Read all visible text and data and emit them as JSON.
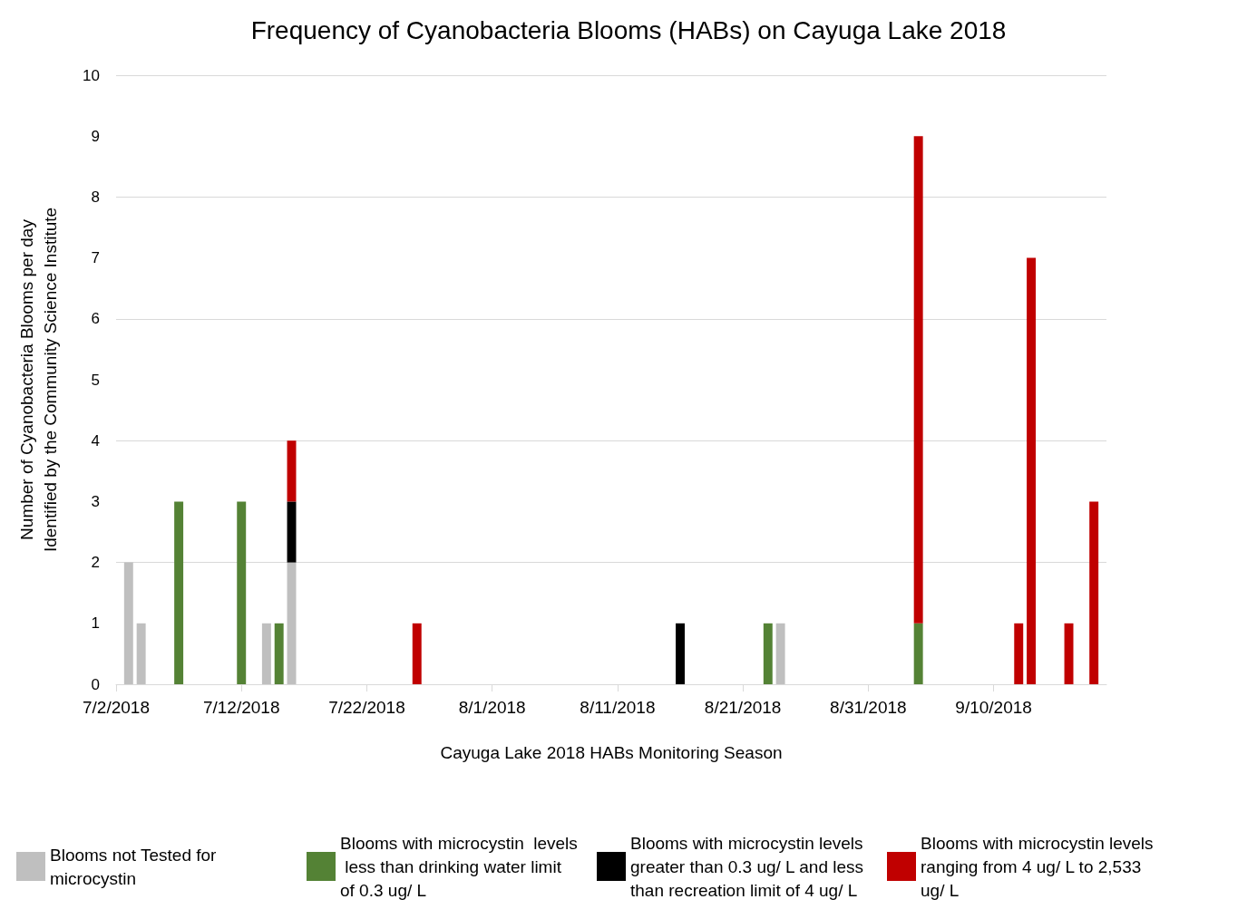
{
  "chart_data": {
    "type": "bar",
    "stacked": true,
    "title": "Frequency of Cyanobacteria Blooms (HABs) on Cayuga Lake 2018",
    "xlabel": "Cayuga Lake 2018 HABs Monitoring Season",
    "ylabel": "Number of Cyanobacteria Blooms per day\nIdentified by the Community Science Institute",
    "x": [
      "2018-07-03",
      "2018-07-04",
      "2018-07-07",
      "2018-07-12",
      "2018-07-14",
      "2018-07-15",
      "2018-07-16",
      "2018-07-26",
      "2018-08-16",
      "2018-08-23",
      "2018-08-24",
      "2018-09-04",
      "2018-09-12",
      "2018-09-13",
      "2018-09-16",
      "2018-09-18"
    ],
    "series": [
      {
        "name": "Blooms not Tested for microcystin",
        "color": "#bfbfbf",
        "values": [
          2,
          1,
          null,
          null,
          1,
          null,
          2,
          null,
          null,
          null,
          1,
          null,
          null,
          null,
          null,
          null
        ]
      },
      {
        "name": "Blooms with microcystin  levels less than drinking water limit of 0.3 ug/ L",
        "color": "#548235",
        "values": [
          null,
          null,
          3,
          3,
          null,
          1,
          null,
          null,
          null,
          1,
          null,
          1,
          null,
          null,
          null,
          null
        ]
      },
      {
        "name": "Blooms with microcystin levels greater than 0.3 ug/ L and less than recreation limit of 4 ug/ L",
        "color": "#000000",
        "values": [
          null,
          null,
          null,
          null,
          null,
          null,
          1,
          null,
          1,
          null,
          null,
          null,
          null,
          null,
          null,
          null
        ]
      },
      {
        "name": "Blooms with microcystin levels ranging from 4 ug/ L to 2,533 ug/ L",
        "color": "#c00000",
        "values": [
          null,
          null,
          null,
          null,
          null,
          null,
          1,
          1,
          null,
          null,
          null,
          8,
          1,
          7,
          1,
          3
        ]
      }
    ],
    "xlim": [
      "2018-07-02",
      "2018-09-19"
    ],
    "xticks": [
      {
        "value": "2018-07-02",
        "label": "7/2/2018"
      },
      {
        "value": "2018-07-12",
        "label": "7/12/2018"
      },
      {
        "value": "2018-07-22",
        "label": "7/22/2018"
      },
      {
        "value": "2018-08-01",
        "label": "8/1/2018"
      },
      {
        "value": "2018-08-11",
        "label": "8/11/2018"
      },
      {
        "value": "2018-08-21",
        "label": "8/21/2018"
      },
      {
        "value": "2018-08-31",
        "label": "8/31/2018"
      },
      {
        "value": "2018-09-10",
        "label": "9/10/2018"
      }
    ],
    "ylim": [
      0,
      10
    ],
    "yticks": [
      0,
      1,
      2,
      3,
      4,
      5,
      6,
      7,
      8,
      9,
      10
    ],
    "grid": "y",
    "legend": "bottom"
  }
}
